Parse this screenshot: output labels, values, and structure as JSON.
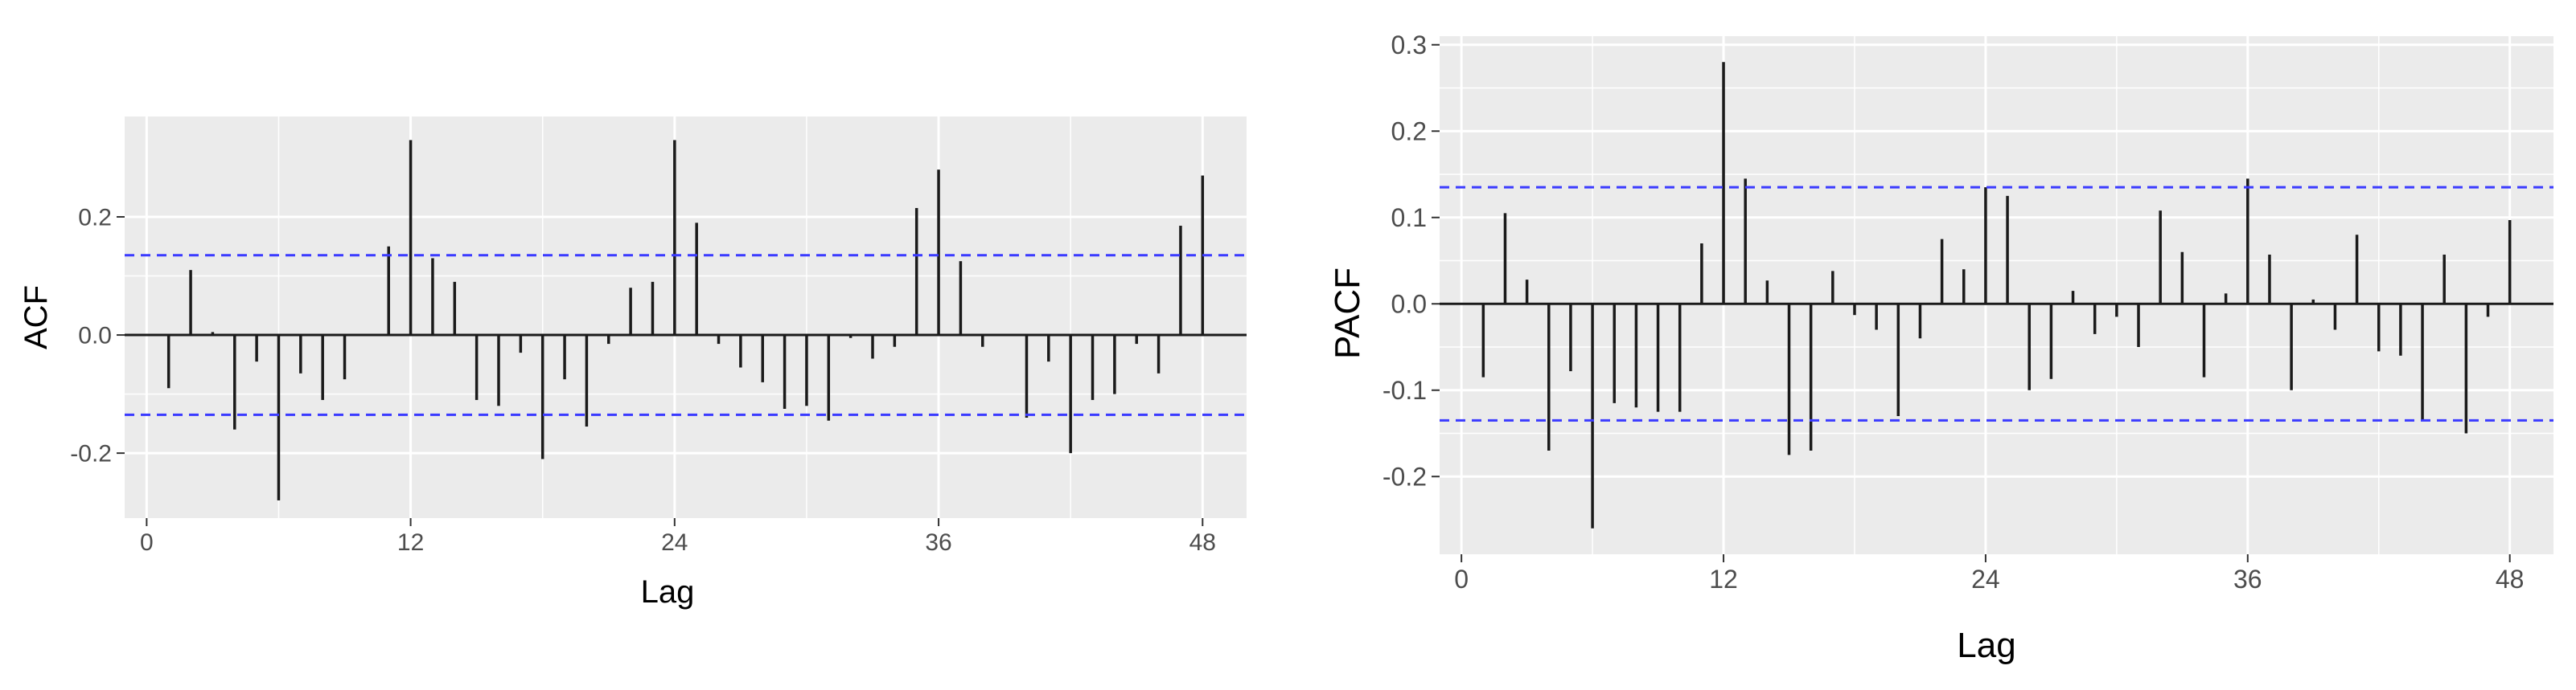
{
  "chart_data": [
    {
      "type": "bar",
      "title": "",
      "xlabel": "Lag",
      "ylabel": "ACF",
      "xlim": [
        -1,
        50
      ],
      "ylim": [
        -0.31,
        0.37
      ],
      "x_ticks": [
        0,
        12,
        24,
        36,
        48
      ],
      "x_tick_labels": [
        "0",
        "12",
        "24",
        "36",
        "48"
      ],
      "y_ticks": [
        -0.2,
        0.0,
        0.2
      ],
      "y_tick_labels": [
        "-0.2",
        "0.0",
        "0.2"
      ],
      "confidence_bounds": [
        0.135,
        -0.135
      ],
      "lags": [
        1,
        2,
        3,
        4,
        5,
        6,
        7,
        8,
        9,
        10,
        11,
        12,
        13,
        14,
        15,
        16,
        17,
        18,
        19,
        20,
        21,
        22,
        23,
        24,
        25,
        26,
        27,
        28,
        29,
        30,
        31,
        32,
        33,
        34,
        35,
        36,
        37,
        38,
        39,
        40,
        41,
        42,
        43,
        44,
        45,
        46,
        47,
        48
      ],
      "values": [
        -0.09,
        0.11,
        0.005,
        -0.16,
        -0.045,
        -0.28,
        -0.065,
        -0.11,
        -0.075,
        0.0,
        0.15,
        0.33,
        0.13,
        0.09,
        -0.11,
        -0.12,
        -0.03,
        -0.21,
        -0.075,
        -0.155,
        -0.015,
        0.08,
        0.09,
        0.33,
        0.19,
        -0.015,
        -0.055,
        -0.08,
        -0.125,
        -0.12,
        -0.145,
        -0.005,
        -0.04,
        -0.02,
        0.215,
        0.28,
        0.125,
        -0.02,
        0.0,
        -0.14,
        -0.045,
        -0.2,
        -0.11,
        -0.1,
        -0.015,
        -0.065,
        0.185,
        0.27
      ],
      "grid": true,
      "colors": {
        "panel": "#ebebeb",
        "grid": "#ffffff",
        "bars": "#1a1a1a",
        "bounds": "#3b3bff",
        "tick_text": "#4d4d4d"
      }
    },
    {
      "type": "bar",
      "title": "",
      "xlabel": "Lag",
      "ylabel": "PACF",
      "xlim": [
        -1,
        50
      ],
      "ylim": [
        -0.29,
        0.31
      ],
      "x_ticks": [
        0,
        12,
        24,
        36,
        48
      ],
      "x_tick_labels": [
        "0",
        "12",
        "24",
        "36",
        "48"
      ],
      "y_ticks": [
        -0.2,
        -0.1,
        0.0,
        0.1,
        0.2,
        0.3
      ],
      "y_tick_labels": [
        "-0.2",
        "-0.1",
        "0.0",
        "0.1",
        "0.2",
        "0.3"
      ],
      "confidence_bounds": [
        0.135,
        -0.135
      ],
      "lags": [
        1,
        2,
        3,
        4,
        5,
        6,
        7,
        8,
        9,
        10,
        11,
        12,
        13,
        14,
        15,
        16,
        17,
        18,
        19,
        20,
        21,
        22,
        23,
        24,
        25,
        26,
        27,
        28,
        29,
        30,
        31,
        32,
        33,
        34,
        35,
        36,
        37,
        38,
        39,
        40,
        41,
        42,
        43,
        44,
        45,
        46,
        47,
        48
      ],
      "values": [
        -0.085,
        0.105,
        0.028,
        -0.17,
        -0.078,
        -0.26,
        -0.115,
        -0.12,
        -0.125,
        -0.125,
        0.07,
        0.28,
        0.145,
        0.027,
        -0.175,
        -0.17,
        0.038,
        -0.013,
        -0.03,
        -0.13,
        -0.04,
        0.075,
        0.04,
        0.135,
        0.125,
        -0.1,
        -0.087,
        0.015,
        -0.035,
        -0.015,
        -0.05,
        0.108,
        0.06,
        -0.085,
        0.012,
        0.145,
        0.057,
        -0.1,
        0.005,
        -0.03,
        0.08,
        -0.055,
        -0.06,
        -0.135,
        0.057,
        -0.15,
        -0.015,
        0.097
      ],
      "grid": true,
      "colors": {
        "panel": "#ebebeb",
        "grid": "#ffffff",
        "bars": "#1a1a1a",
        "bounds": "#3b3bff",
        "tick_text": "#4d4d4d"
      }
    }
  ]
}
